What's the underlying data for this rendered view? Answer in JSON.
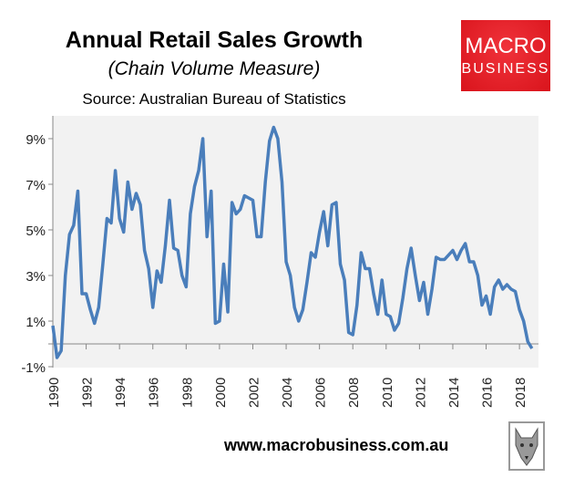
{
  "header": {
    "title": "Annual Retail Sales Growth",
    "subtitle": "(Chain Volume Measure)",
    "source": "Source: Australian Bureau of Statistics"
  },
  "logo": {
    "line1": "MACRO",
    "line2": "BUSINESS",
    "color": "#e8232b"
  },
  "footer": {
    "url": "www.macrobusiness.com.au",
    "wolf_icon": "wolf-head-icon"
  },
  "chart_data": {
    "type": "line",
    "title": "Annual Retail Sales Growth",
    "xlabel": "",
    "ylabel": "",
    "ylim": [
      -1,
      10
    ],
    "xlim": [
      1990,
      2019
    ],
    "grid": false,
    "legend": "none",
    "plot_background": "#f2f2f2",
    "line_color": "#4a7ebb",
    "y_ticks": [
      "-1%",
      "1%",
      "3%",
      "5%",
      "7%",
      "9%"
    ],
    "x_ticks": [
      "1990",
      "1992",
      "1994",
      "1996",
      "1998",
      "2000",
      "2002",
      "2004",
      "2006",
      "2008",
      "2010",
      "2012",
      "2014",
      "2016",
      "2018"
    ],
    "series": [
      {
        "x": [
          "1990-Q1",
          "1990-Q2",
          "1990-Q3",
          "1990-Q4",
          "1991-Q1",
          "1991-Q2",
          "1991-Q3",
          "1991-Q4",
          "1992-Q1",
          "1992-Q2",
          "1992-Q3",
          "1992-Q4",
          "1993-Q1",
          "1993-Q2",
          "1993-Q3",
          "1993-Q4",
          "1994-Q1",
          "1994-Q2",
          "1994-Q3",
          "1994-Q4",
          "1995-Q1",
          "1995-Q2",
          "1995-Q3",
          "1995-Q4",
          "1996-Q1",
          "1996-Q2",
          "1996-Q3",
          "1996-Q4",
          "1997-Q1",
          "1997-Q2",
          "1997-Q3",
          "1997-Q4",
          "1998-Q1",
          "1998-Q2",
          "1998-Q3",
          "1998-Q4",
          "1999-Q1",
          "1999-Q2",
          "1999-Q3",
          "1999-Q4",
          "2000-Q1",
          "2000-Q2",
          "2000-Q3",
          "2000-Q4",
          "2001-Q1",
          "2001-Q2",
          "2001-Q3",
          "2001-Q4",
          "2002-Q1",
          "2002-Q2",
          "2002-Q3",
          "2002-Q4",
          "2003-Q1",
          "2003-Q2",
          "2003-Q3",
          "2003-Q4",
          "2004-Q1",
          "2004-Q2",
          "2004-Q3",
          "2004-Q4",
          "2005-Q1",
          "2005-Q2",
          "2005-Q3",
          "2005-Q4",
          "2006-Q1",
          "2006-Q2",
          "2006-Q3",
          "2006-Q4",
          "2007-Q1",
          "2007-Q2",
          "2007-Q3",
          "2007-Q4",
          "2008-Q1",
          "2008-Q2",
          "2008-Q3",
          "2008-Q4",
          "2009-Q1",
          "2009-Q2",
          "2009-Q3",
          "2009-Q4",
          "2010-Q1",
          "2010-Q2",
          "2010-Q3",
          "2010-Q4",
          "2011-Q1",
          "2011-Q2",
          "2011-Q3",
          "2011-Q4",
          "2012-Q1",
          "2012-Q2",
          "2012-Q3",
          "2012-Q4",
          "2013-Q1",
          "2013-Q2",
          "2013-Q3",
          "2013-Q4",
          "2014-Q1",
          "2014-Q2",
          "2014-Q3",
          "2014-Q4",
          "2015-Q1",
          "2015-Q2",
          "2015-Q3",
          "2015-Q4",
          "2016-Q1",
          "2016-Q2",
          "2016-Q3",
          "2016-Q4",
          "2017-Q1",
          "2017-Q2",
          "2017-Q3",
          "2017-Q4",
          "2018-Q1",
          "2018-Q2",
          "2018-Q3",
          "2018-Q4"
        ],
        "values": [
          0.8,
          -0.6,
          -0.3,
          3.0,
          4.8,
          5.2,
          6.7,
          2.2,
          2.2,
          1.5,
          0.9,
          1.6,
          3.5,
          5.5,
          5.3,
          7.6,
          5.5,
          4.9,
          7.1,
          5.9,
          6.6,
          6.1,
          4.1,
          3.3,
          1.6,
          3.2,
          2.7,
          4.3,
          6.3,
          4.2,
          4.1,
          3.0,
          2.5,
          5.7,
          6.9,
          7.6,
          9.0,
          4.7,
          6.7,
          0.9,
          1.0,
          3.5,
          1.4,
          6.2,
          5.7,
          5.9,
          6.5,
          6.4,
          6.3,
          4.7,
          4.7,
          7.1,
          8.9,
          9.5,
          9.0,
          7.1,
          3.6,
          3.0,
          1.6,
          1.0,
          1.5,
          2.7,
          4.0,
          3.8,
          4.9,
          5.8,
          4.3,
          6.1,
          6.2,
          3.5,
          2.8,
          0.5,
          0.4,
          1.7,
          4.0,
          3.3,
          3.3,
          2.2,
          1.3,
          2.8,
          1.3,
          1.2,
          0.6,
          0.9,
          2.0,
          3.3,
          4.2,
          3.0,
          1.9,
          2.7,
          1.3,
          2.4,
          3.8,
          3.7,
          3.7,
          3.9,
          4.1,
          3.7,
          4.1,
          4.4,
          3.6,
          3.6,
          3.0,
          1.7,
          2.1,
          1.3,
          2.5,
          2.8,
          2.4,
          2.6,
          2.4,
          2.3,
          1.5,
          1.0,
          0.1,
          -0.2
        ]
      }
    ]
  }
}
